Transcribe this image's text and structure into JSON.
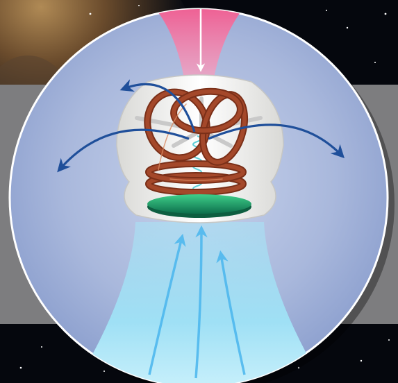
{
  "figure": {
    "colors": {
      "space": "#05070d",
      "nebula": "#7a5a35",
      "gray_band": "#7d7d7f",
      "circle_bg": "#9fb2d8",
      "circle_edge": "#ffffff",
      "funnel_pink": "#e85a8e",
      "cocoon": "#f2f2f0",
      "coil_copper": "#a4482a",
      "coil_highlight": "#d98a62",
      "spring_cyan": "#5fd0d8",
      "spoke_gray": "#c9c9c9",
      "disk_green": "#2bb56b",
      "outflow_blue": "#1f4f9a",
      "inflow_cyan": "#8fdcf2",
      "inflow_arrow": "#4ab6ee"
    },
    "elements": [
      "space-background",
      "gray-band",
      "magnetosphere-circle",
      "pink-accretion-funnel",
      "down-arrow",
      "cocoon-shell",
      "copper-loop-coils",
      "central-spring",
      "spokes",
      "green-disk",
      "curved-outflow-arrows",
      "light-blue-inflow",
      "inflow-arrows"
    ]
  }
}
